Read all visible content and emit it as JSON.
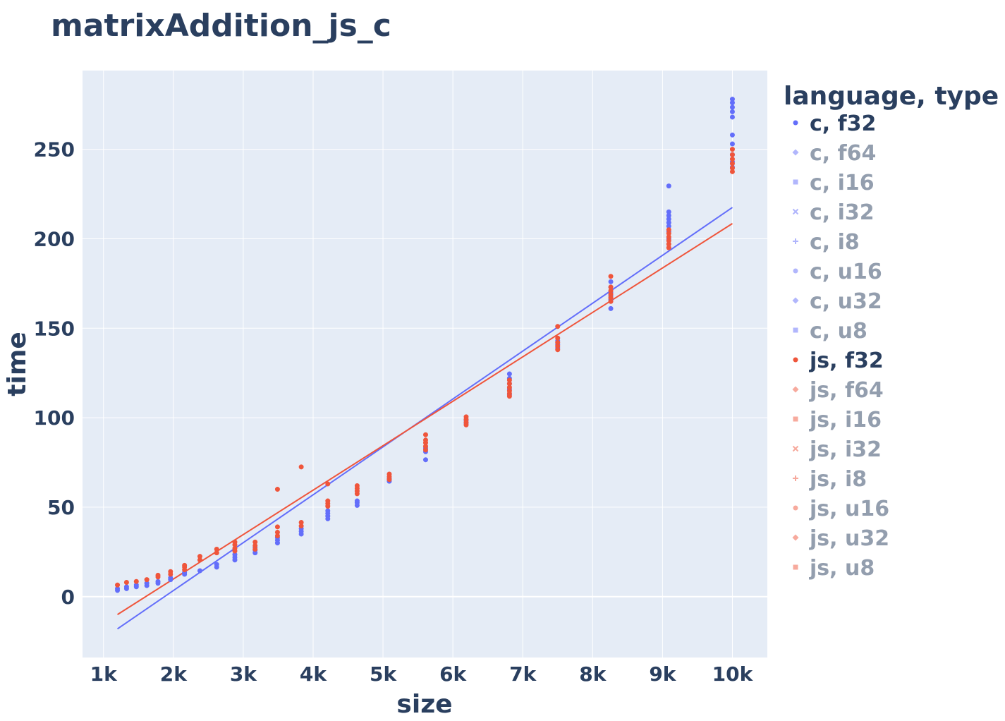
{
  "chart_data": {
    "type": "scatter",
    "title": "matrixAddition_js_c",
    "xlabel": "size",
    "ylabel": "time",
    "xlim": [
      700,
      10500
    ],
    "ylim": [
      -34,
      294
    ],
    "x_ticks": [
      1000,
      2000,
      3000,
      4000,
      5000,
      6000,
      7000,
      8000,
      9000,
      10000
    ],
    "x_tick_labels": [
      "1k",
      "2k",
      "3k",
      "4k",
      "5k",
      "6k",
      "7k",
      "8k",
      "9k",
      "10k"
    ],
    "y_ticks": [
      0,
      50,
      100,
      150,
      200,
      250
    ],
    "y_tick_labels": [
      "0",
      "50",
      "100",
      "150",
      "200",
      "250"
    ],
    "grid": true,
    "legend": {
      "title": "language, type",
      "placement": "right",
      "items": [
        {
          "label": "c, f32",
          "color": "#636efa",
          "symbol": "circle",
          "active": true
        },
        {
          "label": "c, f64",
          "color": "#636efa",
          "symbol": "diamond",
          "active": false
        },
        {
          "label": "c, i16",
          "color": "#636efa",
          "symbol": "square",
          "active": false
        },
        {
          "label": "c, i32",
          "color": "#636efa",
          "symbol": "x",
          "active": false
        },
        {
          "label": "c, i8",
          "color": "#636efa",
          "symbol": "cross",
          "active": false
        },
        {
          "label": "c, u16",
          "color": "#636efa",
          "symbol": "circle",
          "active": false
        },
        {
          "label": "c, u32",
          "color": "#636efa",
          "symbol": "diamond",
          "active": false
        },
        {
          "label": "c, u8",
          "color": "#636efa",
          "symbol": "square",
          "active": false
        },
        {
          "label": "js, f32",
          "color": "#ef553b",
          "symbol": "circle",
          "active": true
        },
        {
          "label": "js, f64",
          "color": "#ef553b",
          "symbol": "diamond",
          "active": false
        },
        {
          "label": "js, i16",
          "color": "#ef553b",
          "symbol": "square",
          "active": false
        },
        {
          "label": "js, i32",
          "color": "#ef553b",
          "symbol": "x",
          "active": false
        },
        {
          "label": "js, i8",
          "color": "#ef553b",
          "symbol": "cross",
          "active": false
        },
        {
          "label": "js, u16",
          "color": "#ef553b",
          "symbol": "circle",
          "active": false
        },
        {
          "label": "js, u32",
          "color": "#ef553b",
          "symbol": "diamond",
          "active": false
        },
        {
          "label": "js, u8",
          "color": "#ef553b",
          "symbol": "square",
          "active": false
        }
      ]
    },
    "series": [
      {
        "name": "c, f32",
        "color": "#636efa",
        "points": [
          [
            1200,
            3.5
          ],
          [
            1200,
            4.5
          ],
          [
            1330,
            4.5
          ],
          [
            1330,
            5.5
          ],
          [
            1470,
            5.5
          ],
          [
            1470,
            6.5
          ],
          [
            1620,
            6.2
          ],
          [
            1620,
            7.5
          ],
          [
            1780,
            7.5
          ],
          [
            1780,
            8.5
          ],
          [
            1960,
            9.5
          ],
          [
            1960,
            10.5
          ],
          [
            2160,
            12.5
          ],
          [
            2160,
            13.5
          ],
          [
            2380,
            14.5
          ],
          [
            2620,
            16.5
          ],
          [
            2620,
            18
          ],
          [
            2880,
            20.5
          ],
          [
            2880,
            22
          ],
          [
            2880,
            23.5
          ],
          [
            3170,
            24.5
          ],
          [
            3170,
            26
          ],
          [
            3170,
            27.5
          ],
          [
            3490,
            30
          ],
          [
            3490,
            31.5
          ],
          [
            3490,
            33
          ],
          [
            3830,
            35
          ],
          [
            3830,
            36.5
          ],
          [
            3830,
            38
          ],
          [
            4210,
            43.5
          ],
          [
            4210,
            45
          ],
          [
            4210,
            46.5
          ],
          [
            4210,
            48
          ],
          [
            4630,
            51
          ],
          [
            4630,
            52.5
          ],
          [
            4630,
            53.5
          ],
          [
            5090,
            64.5
          ],
          [
            5090,
            66
          ],
          [
            5610,
            76.5
          ],
          [
            5610,
            81
          ],
          [
            5610,
            83
          ],
          [
            6190,
            97
          ],
          [
            6190,
            98.5
          ],
          [
            6810,
            113
          ],
          [
            6810,
            116
          ],
          [
            6810,
            119
          ],
          [
            6810,
            122
          ],
          [
            6810,
            124.5
          ],
          [
            7500,
            139
          ],
          [
            7500,
            141
          ],
          [
            7500,
            143
          ],
          [
            8260,
            161
          ],
          [
            8260,
            166
          ],
          [
            8260,
            168
          ],
          [
            8260,
            170
          ],
          [
            8260,
            173
          ],
          [
            8260,
            176
          ],
          [
            9090,
            200
          ],
          [
            9090,
            204
          ],
          [
            9090,
            207
          ],
          [
            9090,
            209
          ],
          [
            9090,
            211
          ],
          [
            9090,
            213
          ],
          [
            9090,
            215
          ],
          [
            9090,
            229.5
          ],
          [
            10000,
            240
          ],
          [
            10000,
            243
          ],
          [
            10000,
            247
          ],
          [
            10000,
            253
          ],
          [
            10000,
            258
          ],
          [
            10000,
            268
          ],
          [
            10000,
            271
          ],
          [
            10000,
            273.5
          ],
          [
            10000,
            276
          ],
          [
            10000,
            278
          ]
        ],
        "trendline": [
          [
            1200,
            -18
          ],
          [
            10000,
            217.5
          ]
        ]
      },
      {
        "name": "js, f32",
        "color": "#ef553b",
        "points": [
          [
            1200,
            6.5
          ],
          [
            1330,
            8
          ],
          [
            1470,
            8.5
          ],
          [
            1620,
            9.5
          ],
          [
            1780,
            11
          ],
          [
            1780,
            12
          ],
          [
            1960,
            12.5
          ],
          [
            1960,
            14
          ],
          [
            2160,
            15
          ],
          [
            2160,
            16.5
          ],
          [
            2160,
            17.5
          ],
          [
            2380,
            20.5
          ],
          [
            2380,
            22.5
          ],
          [
            2620,
            24.5
          ],
          [
            2620,
            26.5
          ],
          [
            2880,
            25.5
          ],
          [
            2880,
            27
          ],
          [
            2880,
            29
          ],
          [
            2880,
            30.5
          ],
          [
            3170,
            26.5
          ],
          [
            3170,
            28.5
          ],
          [
            3170,
            30.5
          ],
          [
            3490,
            34
          ],
          [
            3490,
            36
          ],
          [
            3490,
            39
          ],
          [
            3490,
            60
          ],
          [
            3830,
            39.5
          ],
          [
            3830,
            41.5
          ],
          [
            3830,
            72.5
          ],
          [
            4210,
            50.5
          ],
          [
            4210,
            52
          ],
          [
            4210,
            53.5
          ],
          [
            4210,
            63
          ],
          [
            4630,
            57.5
          ],
          [
            4630,
            59
          ],
          [
            4630,
            60.5
          ],
          [
            4630,
            62
          ],
          [
            5090,
            65.5
          ],
          [
            5090,
            67
          ],
          [
            5090,
            68.5
          ],
          [
            5610,
            82
          ],
          [
            5610,
            84
          ],
          [
            5610,
            86
          ],
          [
            5610,
            87.5
          ],
          [
            5610,
            90.5
          ],
          [
            6190,
            96
          ],
          [
            6190,
            97.5
          ],
          [
            6190,
            99
          ],
          [
            6190,
            100.5
          ],
          [
            6810,
            112
          ],
          [
            6810,
            113.5
          ],
          [
            6810,
            115
          ],
          [
            6810,
            117
          ],
          [
            6810,
            119
          ],
          [
            6810,
            121
          ],
          [
            7500,
            138
          ],
          [
            7500,
            140
          ],
          [
            7500,
            142
          ],
          [
            7500,
            144.5
          ],
          [
            7500,
            151
          ],
          [
            8260,
            165
          ],
          [
            8260,
            167
          ],
          [
            8260,
            169
          ],
          [
            8260,
            171
          ],
          [
            8260,
            173
          ],
          [
            8260,
            179
          ],
          [
            9090,
            195
          ],
          [
            9090,
            197
          ],
          [
            9090,
            199
          ],
          [
            9090,
            201
          ],
          [
            9090,
            203
          ],
          [
            9090,
            205
          ],
          [
            10000,
            237.5
          ],
          [
            10000,
            239.5
          ],
          [
            10000,
            242
          ],
          [
            10000,
            244.5
          ],
          [
            10000,
            247
          ],
          [
            10000,
            250
          ]
        ],
        "trendline": [
          [
            1200,
            -10
          ],
          [
            10000,
            208.5
          ]
        ]
      }
    ]
  }
}
